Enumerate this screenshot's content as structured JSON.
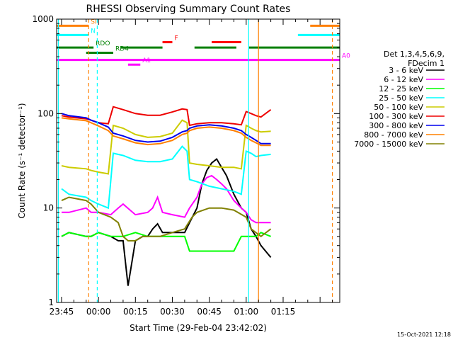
{
  "chart_data": {
    "type": "line",
    "title": "RHESSI Observing Summary Count Rates",
    "xlabel": "Start Time (29-Feb-04 23:42:02)",
    "ylabel": "Count Rate (s⁻¹ detector⁻¹)",
    "yscale": "log",
    "ylim": [
      1,
      1000
    ],
    "xlim_minutes": [
      -17,
      98
    ],
    "x_ticks": [
      {
        "label": "23:45",
        "minute": -15
      },
      {
        "label": "00:00",
        "minute": 0
      },
      {
        "label": "00:15",
        "minute": 15
      },
      {
        "label": "00:30",
        "minute": 30
      },
      {
        "label": "00:45",
        "minute": 45
      },
      {
        "label": "01:00",
        "minute": 60
      },
      {
        "label": "01:15",
        "minute": 75
      }
    ],
    "y_ticks": [
      {
        "label": "1",
        "value": 1
      },
      {
        "label": "10",
        "value": 10
      },
      {
        "label": "100",
        "value": 100
      },
      {
        "label": "1000",
        "value": 1000
      }
    ],
    "timestamp": "15-Oct-2021 12:18",
    "legend": {
      "placement": "right",
      "header": [
        "Det 1,3,4,5,6,9,",
        "FDecim 1"
      ],
      "entries": [
        {
          "label": "3 - 6 keV",
          "color": "#000000"
        },
        {
          "label": "6 - 12 keV",
          "color": "#ff00ff"
        },
        {
          "label": "12 - 25 keV",
          "color": "#00ff00"
        },
        {
          "label": "25 - 50 keV",
          "color": "#00ffff"
        },
        {
          "label": "50 - 100 keV",
          "color": "#cccc00"
        },
        {
          "label": "100 - 300 keV",
          "color": "#ee0000"
        },
        {
          "label": "300 - 800 keV",
          "color": "#0000ee"
        },
        {
          "label": "800 - 7000 keV",
          "color": "#ff8000"
        },
        {
          "label": "7000 - 15000 keV",
          "color": "#808000"
        }
      ]
    },
    "series": [
      {
        "name": "3 - 6 keV",
        "color": "#000000",
        "x": [
          -15,
          -12,
          -5,
          -3,
          0,
          5,
          8,
          10,
          12,
          15,
          18,
          20,
          22,
          24,
          26,
          30,
          35,
          37,
          40,
          42,
          44,
          46,
          48,
          50,
          52,
          55,
          58,
          60,
          62,
          64,
          66,
          70
        ],
        "y": [
          5,
          5.5,
          5,
          5,
          5.5,
          5,
          4.5,
          4.5,
          1.5,
          4.5,
          5,
          5,
          6,
          6.8,
          5.5,
          5.5,
          5.5,
          7,
          10,
          18,
          25,
          30,
          33,
          27,
          22,
          14,
          10,
          9,
          6,
          5,
          4,
          3
        ]
      },
      {
        "name": "6 - 12 keV",
        "color": "#ff00ff",
        "x": [
          -15,
          -12,
          -5,
          -3,
          0,
          5,
          8,
          10,
          15,
          20,
          22,
          24,
          26,
          30,
          35,
          37,
          40,
          42,
          44,
          46,
          48,
          50,
          52,
          55,
          58,
          60,
          62,
          64,
          66,
          70
        ],
        "y": [
          9,
          9,
          10,
          9,
          9,
          8.5,
          10,
          11,
          8.5,
          9,
          10,
          13,
          9,
          8.5,
          8,
          10,
          13,
          18,
          21,
          22,
          20,
          18,
          16,
          12,
          10,
          9,
          7.5,
          7,
          7,
          7
        ]
      },
      {
        "name": "12 - 25 keV",
        "color": "#00ff00",
        "x": [
          -15,
          -12,
          -5,
          -3,
          0,
          5,
          10,
          15,
          20,
          25,
          30,
          35,
          37,
          40,
          45,
          50,
          55,
          58,
          60,
          62,
          64,
          66,
          70
        ],
        "y": [
          5,
          5.5,
          5,
          5,
          5.5,
          5,
          5,
          5.5,
          5,
          5,
          5,
          5,
          3.5,
          3.5,
          3.5,
          3.5,
          3.5,
          5,
          5,
          5,
          5,
          5.5,
          5
        ]
      },
      {
        "name": "25 - 50 keV",
        "color": "#00ffff",
        "x": [
          -15,
          -12,
          -5,
          -3,
          0,
          4,
          6,
          10,
          15,
          20,
          25,
          30,
          34,
          36,
          37,
          40,
          45,
          50,
          55,
          58,
          60,
          62,
          64,
          66,
          70
        ],
        "y": [
          16,
          14,
          13,
          12,
          11,
          10,
          38,
          36,
          32,
          31,
          31,
          33,
          45,
          40,
          20,
          19,
          17,
          16,
          15,
          14,
          40,
          38,
          35,
          36,
          37
        ]
      },
      {
        "name": "50 - 100 keV",
        "color": "#cccc00",
        "x": [
          -15,
          -12,
          -5,
          -3,
          0,
          4,
          6,
          10,
          15,
          20,
          25,
          30,
          34,
          36,
          37,
          40,
          45,
          50,
          55,
          58,
          60,
          62,
          64,
          66,
          70
        ],
        "y": [
          28,
          27,
          26,
          25,
          24,
          23,
          75,
          70,
          60,
          56,
          57,
          62,
          85,
          80,
          30,
          29,
          28,
          27,
          27,
          26,
          75,
          70,
          66,
          64,
          65
        ]
      },
      {
        "name": "100 - 300 keV",
        "color": "#ee0000",
        "x": [
          -15,
          -12,
          -5,
          -3,
          0,
          4,
          6,
          10,
          15,
          20,
          25,
          30,
          34,
          36,
          37,
          40,
          45,
          50,
          55,
          58,
          60,
          62,
          64,
          66,
          70
        ],
        "y": [
          95,
          92,
          88,
          85,
          80,
          78,
          118,
          110,
          100,
          96,
          96,
          104,
          112,
          110,
          75,
          78,
          80,
          80,
          78,
          76,
          105,
          100,
          95,
          92,
          110
        ]
      },
      {
        "name": "300 - 800 keV",
        "color": "#0000ee",
        "x": [
          -15,
          -12,
          -5,
          -3,
          0,
          4,
          6,
          10,
          15,
          20,
          25,
          30,
          34,
          36,
          37,
          40,
          45,
          50,
          55,
          58,
          60,
          62,
          64,
          66,
          70
        ],
        "y": [
          100,
          95,
          90,
          85,
          80,
          72,
          62,
          58,
          52,
          50,
          51,
          56,
          64,
          66,
          70,
          74,
          76,
          74,
          70,
          66,
          60,
          56,
          52,
          48,
          48
        ]
      },
      {
        "name": "800 - 7000 keV",
        "color": "#ff8000",
        "x": [
          -15,
          -12,
          -5,
          -3,
          0,
          4,
          6,
          10,
          15,
          20,
          25,
          30,
          34,
          36,
          37,
          40,
          45,
          50,
          55,
          58,
          60,
          62,
          64,
          66,
          70
        ],
        "y": [
          90,
          88,
          84,
          80,
          74,
          66,
          58,
          54,
          49,
          47,
          48,
          52,
          60,
          62,
          66,
          70,
          72,
          70,
          66,
          62,
          56,
          52,
          49,
          46,
          46
        ]
      },
      {
        "name": "7000 - 15000 keV",
        "color": "#808000",
        "x": [
          -15,
          -12,
          -5,
          -3,
          0,
          5,
          8,
          10,
          12,
          15,
          18,
          20,
          25,
          30,
          35,
          38,
          40,
          45,
          50,
          55,
          60,
          62,
          66,
          70
        ],
        "y": [
          12,
          13,
          12,
          11,
          9,
          8,
          7,
          5,
          4.5,
          4.5,
          5,
          5,
          5,
          5.5,
          6,
          8,
          9,
          10,
          10,
          9.5,
          8,
          6,
          5,
          6
        ]
      }
    ],
    "state_bars": [
      {
        "label": "SI",
        "color": "#ff8000",
        "value": 850,
        "segments": [
          [
            -17,
            -4
          ],
          [
            86,
            98
          ]
        ]
      },
      {
        "label": "N",
        "color": "#00ffff",
        "value": 680,
        "segments": [
          [
            -17,
            -4
          ],
          [
            81,
            98
          ]
        ]
      },
      {
        "label": "F",
        "color": "#ff0000",
        "value": 570,
        "segments": [
          [
            26,
            30
          ],
          [
            46,
            58
          ]
        ]
      },
      {
        "label": "RDO",
        "color": "#008000",
        "value": 500,
        "segments": [
          [
            -17,
            -2
          ],
          [
            9,
            26
          ],
          [
            39,
            56
          ],
          [
            61,
            98
          ]
        ]
      },
      {
        "label": "RD4",
        "color": "#008000",
        "value": 440,
        "segments": [
          [
            -5,
            6
          ]
        ]
      },
      {
        "label": "A0",
        "color": "#ff00ff",
        "value": 370,
        "segments": [
          [
            -17,
            98
          ]
        ]
      },
      {
        "label": "A1",
        "color": "#ff00ff",
        "value": 330,
        "segments": [
          [
            12,
            17
          ]
        ]
      }
    ],
    "vlines": [
      {
        "minute": -4,
        "color": "#ff8000",
        "style": "dashed"
      },
      {
        "minute": -0.5,
        "color": "#00ffff",
        "style": "dashed"
      },
      {
        "minute": 61,
        "color": "#00ffff",
        "style": "solid"
      },
      {
        "minute": 65,
        "color": "#ff8000",
        "style": "solid"
      },
      {
        "minute": 95,
        "color": "#ff8000",
        "style": "dashed"
      },
      {
        "minute": -16.3,
        "color": "#00ffff",
        "style": "solid"
      }
    ]
  }
}
